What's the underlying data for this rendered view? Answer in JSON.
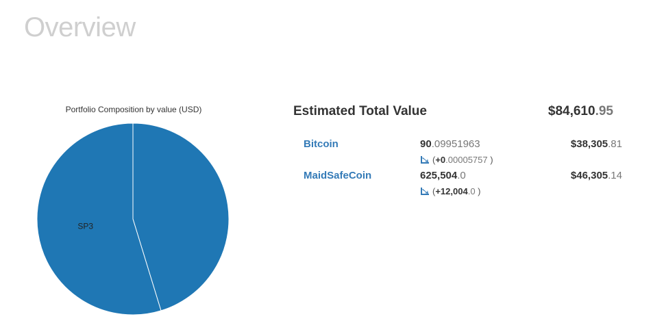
{
  "page": {
    "title": "Overview"
  },
  "summary": {
    "label": "Estimated Total Value",
    "value_int": "$84,610",
    "value_dec": ".95"
  },
  "coins": [
    {
      "name": "Bitcoin",
      "amount_int": "90",
      "amount_dec": ".09951963",
      "usd_int": "$38,305",
      "usd_dec": ".81",
      "change_prefix": "(",
      "change_int": "+0",
      "change_dec": ".00005757",
      "change_suffix": " )"
    },
    {
      "name": "MaidSafeCoin",
      "amount_int": "625,504",
      "amount_dec": ".0",
      "usd_int": "$46,305",
      "usd_dec": ".14",
      "change_prefix": "(",
      "change_int": "+12,004",
      "change_dec": ".0",
      "change_suffix": " )"
    }
  ],
  "icons": {
    "change": "trend-up-icon"
  },
  "colors": {
    "slice": "#1f77b4",
    "link": "#337ab7",
    "title_gray": "#cfcfcf"
  },
  "chart_data": {
    "type": "pie",
    "title": "Portfolio Composition by value (USD)",
    "slices": [
      {
        "label": "",
        "value": 38305.81
      },
      {
        "label": "SP3",
        "value": 46305.14
      }
    ],
    "start_angle_deg": 0,
    "direction": "clockwise"
  }
}
